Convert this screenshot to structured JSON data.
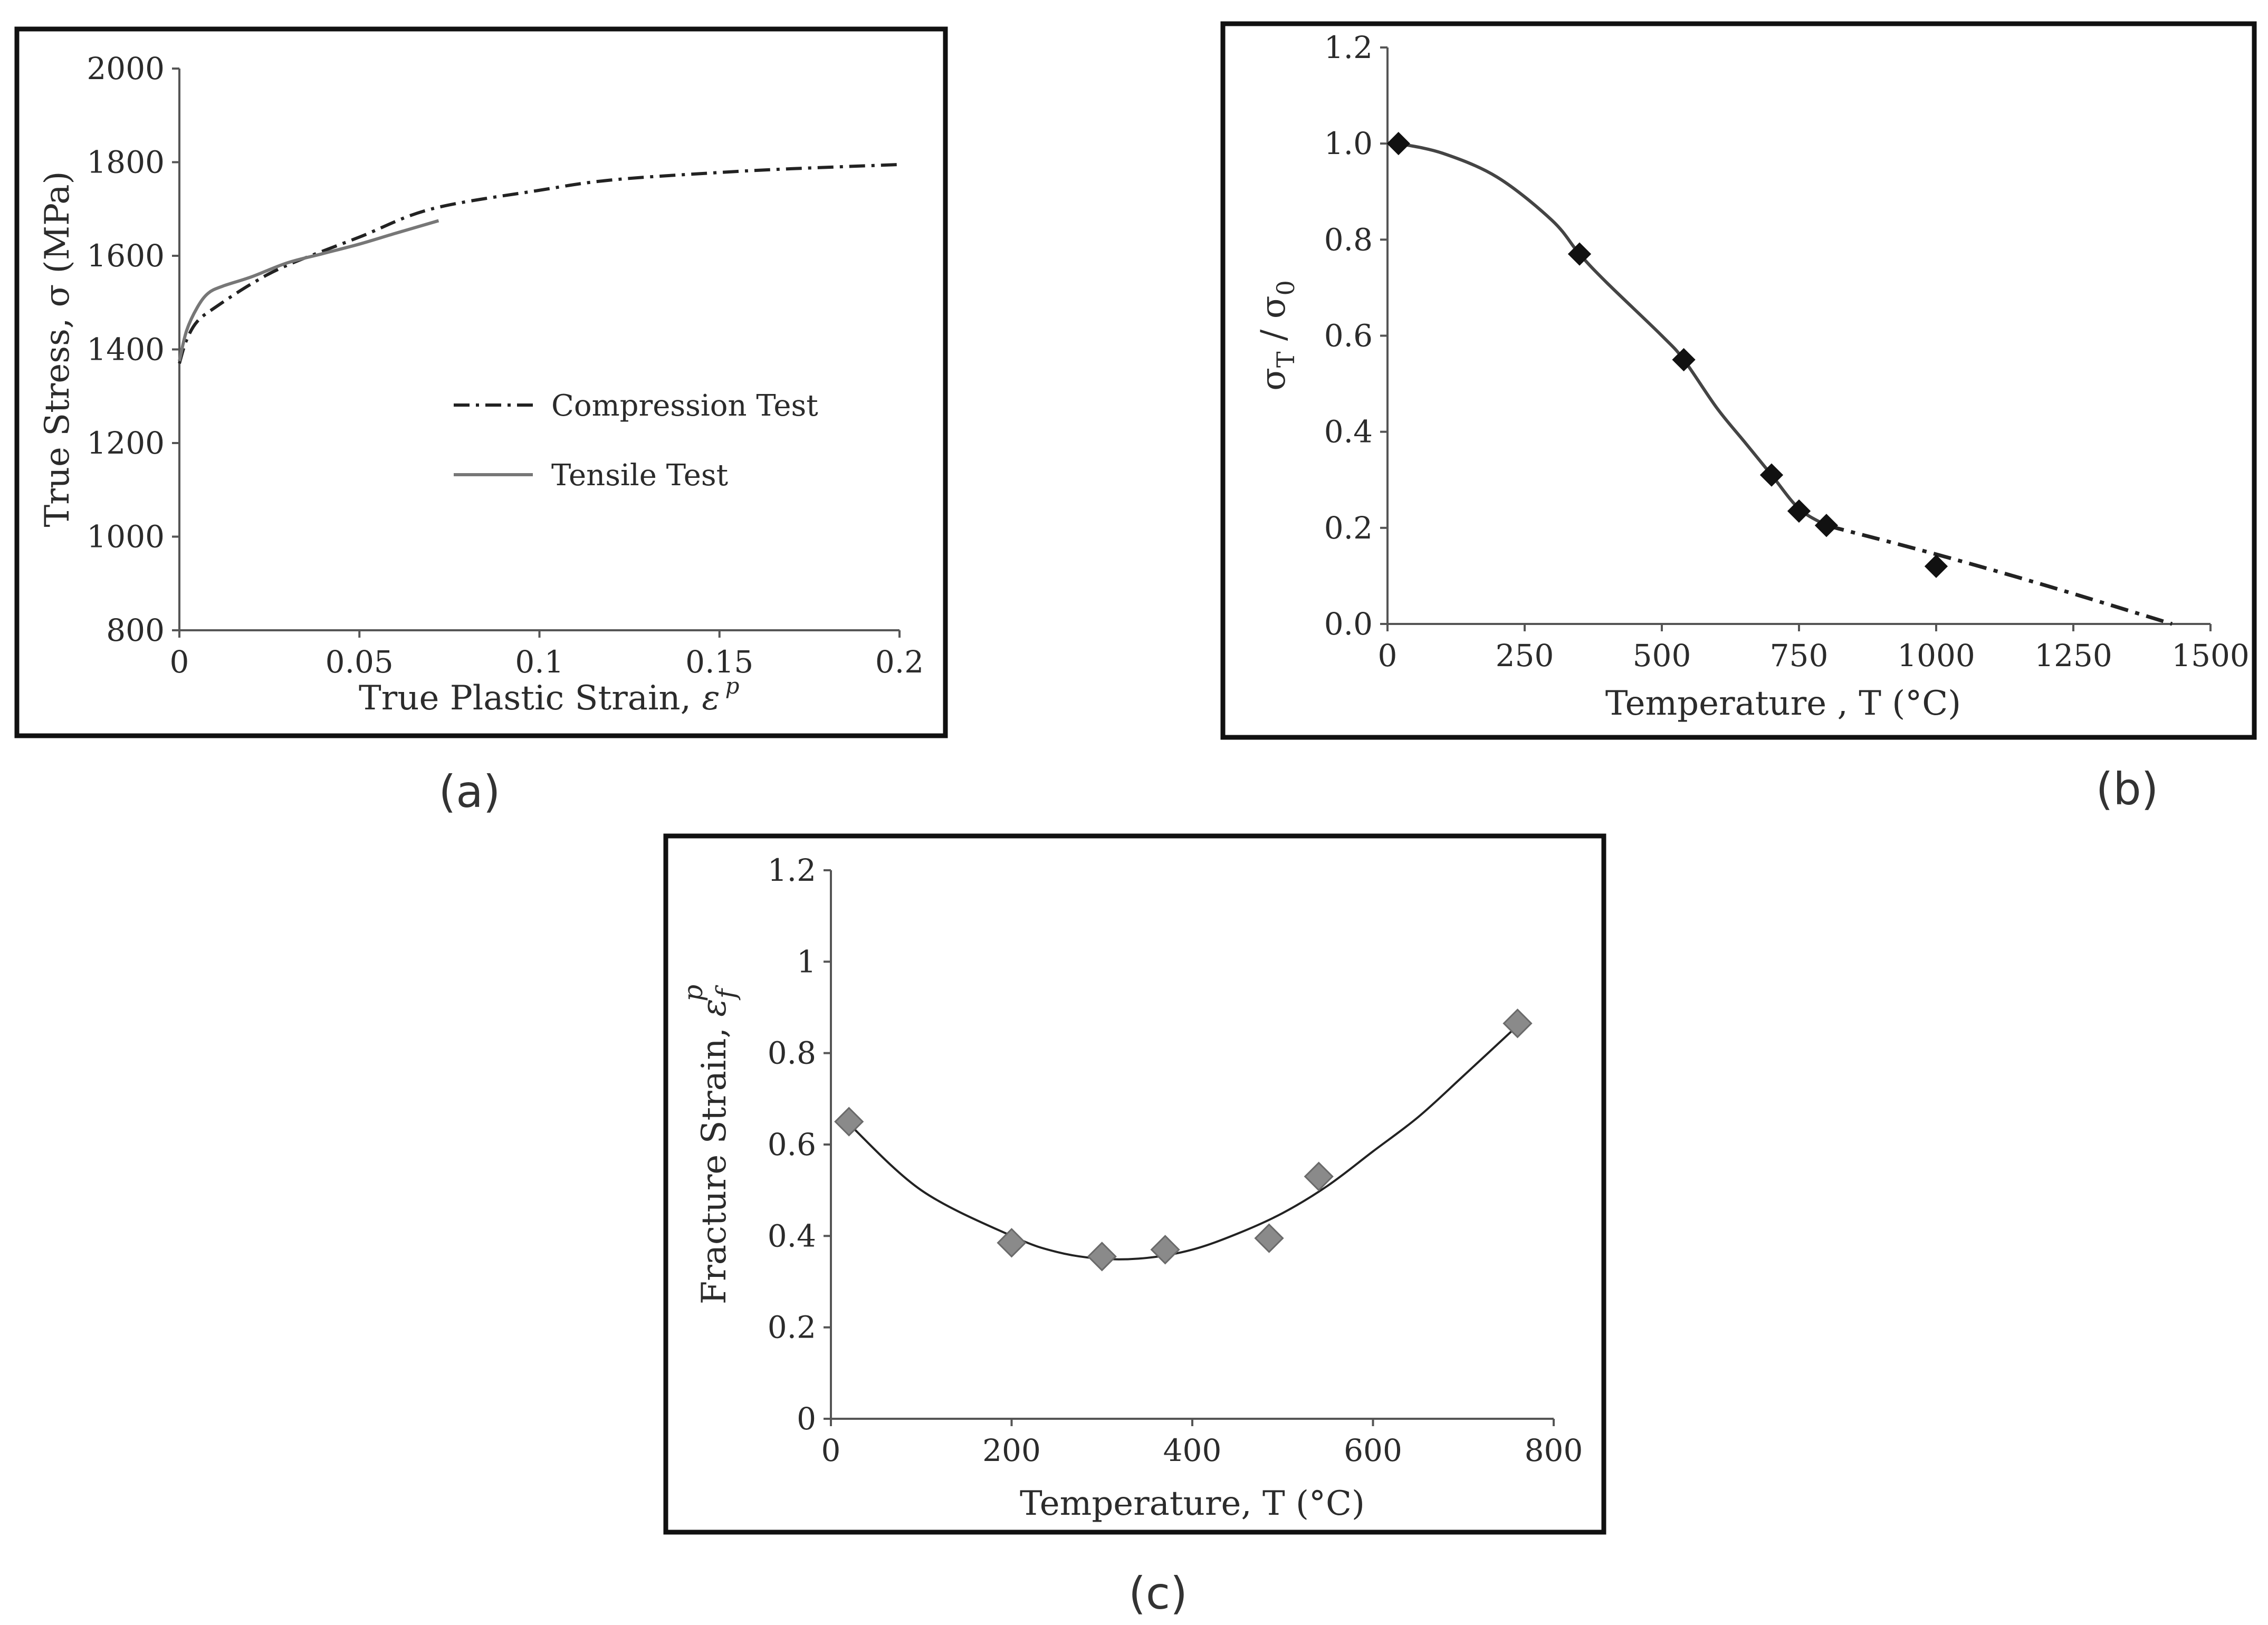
{
  "figure": {
    "captions": [
      "(a)",
      "(b)",
      "(c)"
    ]
  },
  "chart_data": [
    {
      "id": "a",
      "type": "line",
      "title": "",
      "xlabel": "True Plastic Strain, ",
      "xlabel_symbol": "ε",
      "xlabel_sup": "p",
      "ylabel": "True Stress, σ (MPa)",
      "xlim": [
        0,
        0.2
      ],
      "ylim": [
        800,
        2000
      ],
      "x_ticks": [
        0,
        0.05,
        0.1,
        0.15,
        0.2
      ],
      "x_tick_labels": [
        "0",
        "0.05",
        "0.1",
        "0.15",
        "0.2"
      ],
      "y_ticks": [
        800,
        1000,
        1200,
        1400,
        1600,
        1800,
        2000
      ],
      "y_tick_labels": [
        "800",
        "1000",
        "1200",
        "1400",
        "1600",
        "1800",
        "2000"
      ],
      "legend": [
        "Compression Test",
        "Tensile Test"
      ],
      "series": [
        {
          "name": "Compression Test",
          "style": "dash-dot",
          "color": "#222222",
          "x": [
            0,
            0.002,
            0.005,
            0.01,
            0.02,
            0.03,
            0.05,
            0.07,
            0.1,
            0.12,
            0.15,
            0.17,
            0.2
          ],
          "y": [
            1370,
            1420,
            1460,
            1490,
            1540,
            1580,
            1640,
            1700,
            1740,
            1762,
            1778,
            1786,
            1795
          ]
        },
        {
          "name": "Tensile Test",
          "style": "solid",
          "color": "#777777",
          "x": [
            0,
            0.002,
            0.005,
            0.008,
            0.012,
            0.02,
            0.03,
            0.04,
            0.05,
            0.06,
            0.072
          ],
          "y": [
            1375,
            1440,
            1490,
            1520,
            1535,
            1555,
            1585,
            1605,
            1625,
            1648,
            1675
          ]
        }
      ]
    },
    {
      "id": "b",
      "type": "scatter",
      "title": "",
      "xlabel": "Temperature , T (°C)",
      "ylabel": "σ",
      "ylabel_sub1": "T",
      "ylabel_mid": " / σ",
      "ylabel_sub2": "0",
      "xlim": [
        0,
        1500
      ],
      "ylim": [
        0,
        1.2
      ],
      "x_ticks": [
        0,
        250,
        500,
        750,
        1000,
        1250,
        1500
      ],
      "x_tick_labels": [
        "0",
        "250",
        "500",
        "750",
        "1000",
        "1250",
        "1500"
      ],
      "y_ticks": [
        0,
        0.2,
        0.4,
        0.6,
        0.8,
        1.0,
        1.2
      ],
      "y_tick_labels": [
        "0.0",
        "0.2",
        "0.4",
        "0.6",
        "0.8",
        "1.0",
        "1.2"
      ],
      "points": {
        "x": [
          20,
          350,
          540,
          700,
          750,
          800,
          1000
        ],
        "y": [
          1.0,
          0.77,
          0.55,
          0.31,
          0.235,
          0.205,
          0.12
        ]
      },
      "fit_solid": {
        "x": [
          20,
          100,
          200,
          300,
          350,
          400,
          500,
          540,
          600,
          650,
          700,
          750,
          800
        ],
        "y": [
          1.0,
          0.98,
          0.93,
          0.84,
          0.77,
          0.71,
          0.6,
          0.55,
          0.45,
          0.38,
          0.31,
          0.24,
          0.205
        ]
      },
      "fit_dashed": {
        "x": [
          800,
          1000,
          1200,
          1430
        ],
        "y": [
          0.205,
          0.145,
          0.08,
          0.0
        ]
      }
    },
    {
      "id": "c",
      "type": "scatter",
      "title": "",
      "xlabel": "Temperature, T (°C)",
      "ylabel": "Fracture Strain, ",
      "ylabel_symbol": "ε",
      "ylabel_sub": "f",
      "ylabel_sup": "p",
      "xlim": [
        0,
        800
      ],
      "ylim": [
        0,
        1.2
      ],
      "x_ticks": [
        0,
        200,
        400,
        600,
        800
      ],
      "x_tick_labels": [
        "0",
        "200",
        "400",
        "600",
        "800"
      ],
      "y_ticks": [
        0,
        0.2,
        0.4,
        0.6,
        0.8,
        1.0,
        1.2
      ],
      "y_tick_labels": [
        "0",
        "0.2",
        "0.4",
        "0.6",
        "0.8",
        "1",
        "1.2"
      ],
      "points": {
        "x": [
          20,
          200,
          300,
          370,
          485,
          540,
          760
        ],
        "y": [
          0.65,
          0.385,
          0.355,
          0.37,
          0.395,
          0.53,
          0.865
        ]
      },
      "fit": {
        "x": [
          20,
          100,
          200,
          250,
          300,
          350,
          400,
          450,
          500,
          550,
          600,
          650,
          700,
          760
        ],
        "y": [
          0.645,
          0.5,
          0.4,
          0.365,
          0.35,
          0.352,
          0.37,
          0.405,
          0.45,
          0.51,
          0.585,
          0.66,
          0.75,
          0.86
        ]
      }
    }
  ]
}
